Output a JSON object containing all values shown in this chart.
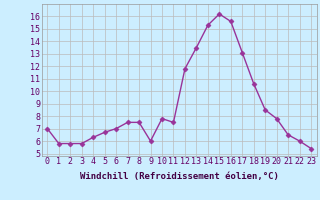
{
  "x": [
    0,
    1,
    2,
    3,
    4,
    5,
    6,
    7,
    8,
    9,
    10,
    11,
    12,
    13,
    14,
    15,
    16,
    17,
    18,
    19,
    20,
    21,
    22,
    23
  ],
  "y": [
    7.0,
    5.8,
    5.8,
    5.8,
    6.3,
    6.7,
    7.0,
    7.5,
    7.5,
    6.0,
    7.8,
    7.5,
    11.8,
    13.5,
    15.3,
    16.2,
    15.6,
    13.1,
    10.6,
    8.5,
    7.8,
    6.5,
    6.0,
    5.4
  ],
  "line_color": "#993399",
  "marker": "D",
  "marker_size": 2.5,
  "line_width": 1.0,
  "bg_color": "#cceeff",
  "grid_color": "#bbbbbb",
  "xlabel": "Windchill (Refroidissement éolien,°C)",
  "xlabel_fontsize": 6.5,
  "tick_fontsize": 6,
  "ylim_min": 4.8,
  "ylim_max": 17.0,
  "yticks": [
    5,
    6,
    7,
    8,
    9,
    10,
    11,
    12,
    13,
    14,
    15,
    16
  ],
  "xticks": [
    0,
    1,
    2,
    3,
    4,
    5,
    6,
    7,
    8,
    9,
    10,
    11,
    12,
    13,
    14,
    15,
    16,
    17,
    18,
    19,
    20,
    21,
    22,
    23
  ],
  "xlim_min": -0.5,
  "xlim_max": 23.5
}
